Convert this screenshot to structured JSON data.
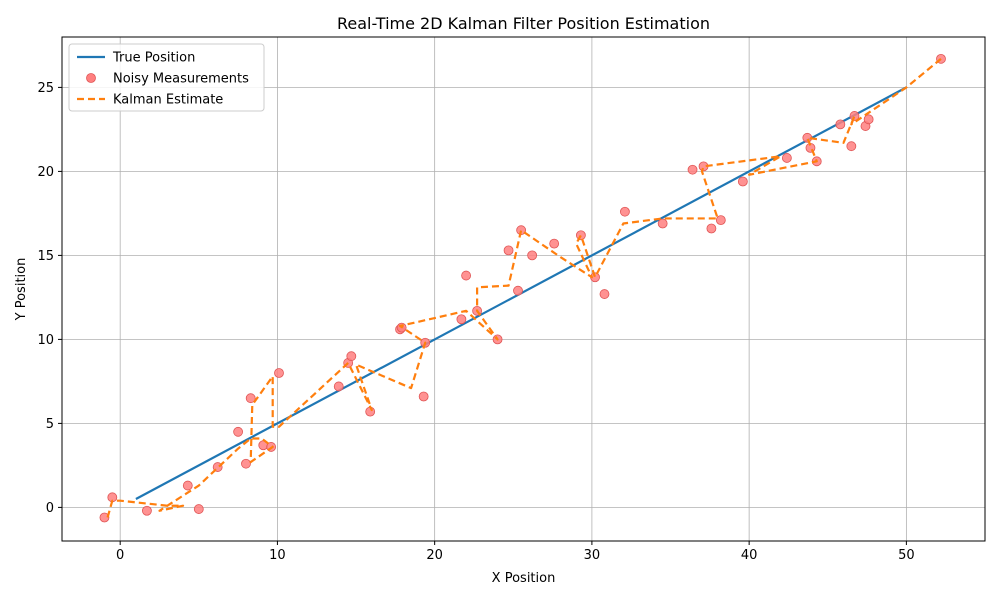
{
  "colors": {
    "true_line": "#1f77b4",
    "kalman_line": "#ff7f0e",
    "measurement_fill": "#ff7f7f",
    "measurement_edge": "#e05555",
    "grid": "#b0b0b0"
  },
  "chart_data": {
    "type": "line",
    "title": "Real-Time 2D Kalman Filter Position Estimation",
    "xlabel": "X Position",
    "ylabel": "Y Position",
    "xlim": [
      -3.7,
      55.0
    ],
    "ylim": [
      -2.0,
      28.0
    ],
    "xticks": [
      0,
      10,
      20,
      30,
      40,
      50
    ],
    "yticks": [
      0,
      5,
      10,
      15,
      20,
      25
    ],
    "grid": true,
    "legend_position": "top-left",
    "series": [
      {
        "name": "True Position",
        "kind": "line",
        "style": "solid",
        "x": [
          1,
          50
        ],
        "y": [
          0.5,
          25
        ]
      },
      {
        "name": "Noisy Measurements",
        "kind": "scatter",
        "x": [
          -1.0,
          -0.5,
          1.7,
          4.3,
          5.0,
          6.2,
          7.5,
          8.0,
          8.3,
          9.1,
          9.6,
          10.1,
          13.9,
          14.5,
          14.7,
          15.9,
          17.8,
          17.9,
          19.3,
          19.4,
          21.7,
          22.0,
          22.7,
          24.0,
          24.7,
          25.3,
          25.5,
          26.2,
          27.6,
          29.3,
          30.2,
          30.8,
          32.1,
          34.5,
          36.4,
          37.1,
          37.6,
          38.2,
          39.6,
          42.4,
          43.7,
          43.9,
          44.3,
          45.8,
          46.5,
          46.7,
          47.4,
          47.6,
          52.2
        ],
        "y": [
          -0.6,
          0.6,
          -0.2,
          1.3,
          -0.1,
          2.4,
          4.5,
          2.6,
          6.5,
          3.7,
          3.6,
          8.0,
          7.2,
          8.6,
          9.0,
          5.7,
          10.6,
          10.7,
          6.6,
          9.8,
          11.2,
          13.8,
          11.7,
          10.0,
          15.3,
          12.9,
          16.5,
          15.0,
          15.7,
          16.2,
          13.7,
          12.7,
          17.6,
          16.9,
          20.1,
          20.3,
          16.6,
          17.1,
          19.4,
          20.8,
          22.0,
          21.4,
          20.6,
          22.8,
          21.5,
          23.3,
          22.7,
          23.1,
          26.7
        ]
      },
      {
        "name": "Kalman Estimate",
        "kind": "line",
        "style": "dashed",
        "x": [
          -0.8,
          -0.5,
          0.0,
          3.0,
          4.0,
          2.5,
          5.0,
          7.5,
          8.3,
          9.0,
          9.7,
          8.3,
          8.4,
          9.7,
          9.7,
          10.1,
          14.5,
          16.0,
          15.0,
          18.5,
          19.4,
          17.8,
          22.0,
          24.0,
          22.7,
          22.7,
          24.7,
          25.5,
          28.0,
          30.0,
          29.0,
          29.3,
          30.2,
          32.0,
          34.5,
          38.0,
          37.0,
          37.1,
          42.0,
          40.0,
          44.3,
          43.7,
          46.0,
          46.7,
          46.5,
          50.0,
          52.2
        ],
        "y": [
          -0.6,
          0.4,
          0.4,
          0.1,
          0.1,
          -0.2,
          1.3,
          3.5,
          4.1,
          4.1,
          3.6,
          2.7,
          6.1,
          7.8,
          4.8,
          4.8,
          8.6,
          5.8,
          8.5,
          7.1,
          9.8,
          10.8,
          11.7,
          10.0,
          11.7,
          13.1,
          13.2,
          16.5,
          14.9,
          13.7,
          15.7,
          16.2,
          13.7,
          16.9,
          17.2,
          17.2,
          20.0,
          20.3,
          20.9,
          19.8,
          20.6,
          22.0,
          21.7,
          23.3,
          22.8,
          25.0,
          26.7
        ]
      }
    ]
  }
}
